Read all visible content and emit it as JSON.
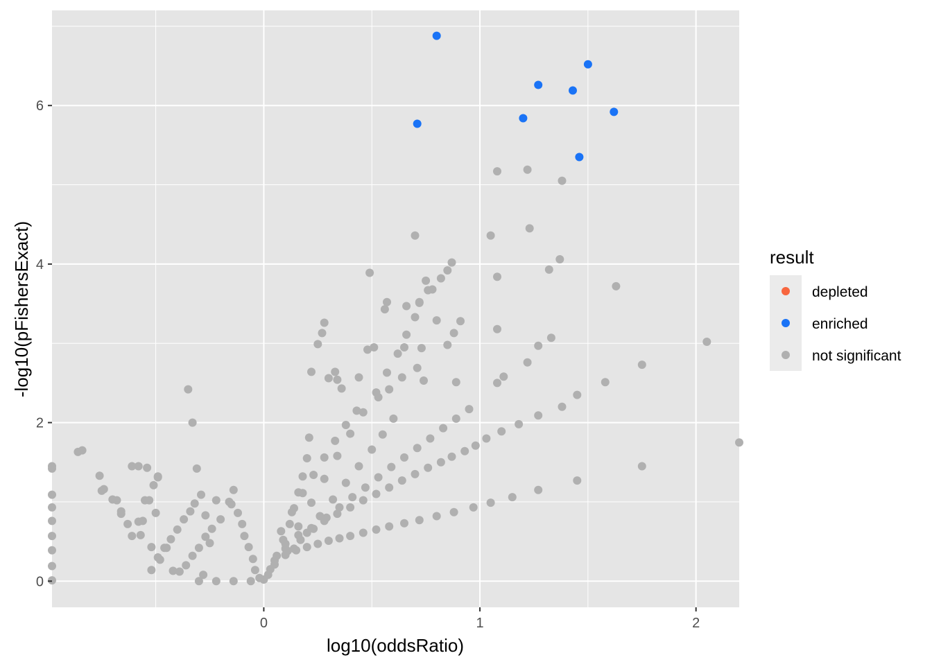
{
  "chart_data": {
    "type": "scatter",
    "title": "",
    "xlabel": "log10(oddsRatio)",
    "ylabel": "-log10(pFishersExact)",
    "xlim": [
      -0.98,
      2.2
    ],
    "ylim": [
      -0.33,
      7.2
    ],
    "x_ticks": [
      0,
      1,
      2
    ],
    "y_ticks": [
      0,
      2,
      4,
      6
    ],
    "grid": true,
    "legend": {
      "title": "result",
      "position": "right",
      "entries": [
        {
          "label": "depleted",
          "color": "#F8663F"
        },
        {
          "label": "enriched",
          "color": "#1A73F6"
        },
        {
          "label": "not significant",
          "color": "#B0B0B0"
        }
      ]
    },
    "colors": {
      "panel_background": "#E5E5E5",
      "grid": "#FFFFFF",
      "depleted": "#F8663F",
      "enriched": "#1A73F6",
      "not_significant": "#B0B0B0"
    },
    "series": [
      {
        "name": "enriched",
        "points": [
          [
            0.8,
            6.88
          ],
          [
            1.5,
            6.52
          ],
          [
            1.27,
            6.26
          ],
          [
            1.43,
            6.19
          ],
          [
            1.62,
            5.92
          ],
          [
            1.2,
            5.84
          ],
          [
            0.71,
            5.77
          ],
          [
            1.46,
            5.35
          ]
        ]
      },
      {
        "name": "depleted",
        "points": []
      },
      {
        "name": "not significant",
        "points": [
          [
            1.08,
            5.17
          ],
          [
            1.22,
            5.19
          ],
          [
            1.38,
            5.05
          ],
          [
            1.23,
            4.45
          ],
          [
            0.7,
            4.36
          ],
          [
            1.05,
            4.36
          ],
          [
            1.37,
            4.06
          ],
          [
            1.32,
            3.93
          ],
          [
            1.08,
            3.84
          ],
          [
            1.63,
            3.72
          ],
          [
            0.49,
            3.89
          ],
          [
            0.57,
            3.52
          ],
          [
            0.56,
            3.43
          ],
          [
            0.66,
            3.47
          ],
          [
            0.76,
            3.67
          ],
          [
            0.8,
            3.29
          ],
          [
            0.75,
            3.79
          ],
          [
            0.72,
            3.51
          ],
          [
            0.91,
            3.28
          ],
          [
            0.85,
            2.98
          ],
          [
            0.88,
            3.13
          ],
          [
            0.73,
            2.94
          ],
          [
            0.65,
            2.95
          ],
          [
            0.71,
            2.69
          ],
          [
            0.74,
            2.53
          ],
          [
            0.89,
            2.51
          ],
          [
            0.64,
            2.57
          ],
          [
            0.48,
            2.92
          ],
          [
            0.51,
            2.95
          ],
          [
            0.28,
            3.26
          ],
          [
            0.27,
            3.13
          ],
          [
            0.25,
            2.99
          ],
          [
            0.22,
            2.64
          ],
          [
            0.3,
            2.56
          ],
          [
            0.33,
            2.64
          ],
          [
            0.34,
            2.54
          ],
          [
            0.44,
            2.57
          ],
          [
            0.36,
            2.43
          ],
          [
            0.53,
            2.32
          ],
          [
            0.58,
            2.42
          ],
          [
            1.08,
            3.18
          ],
          [
            1.27,
            2.97
          ],
          [
            1.33,
            3.07
          ],
          [
            1.11,
            2.58
          ],
          [
            1.08,
            2.5
          ],
          [
            1.22,
            2.76
          ],
          [
            1.45,
            2.35
          ],
          [
            1.58,
            2.51
          ],
          [
            1.75,
            2.73
          ],
          [
            2.05,
            3.02
          ],
          [
            2.2,
            1.75
          ],
          [
            1.75,
            1.45
          ],
          [
            1.45,
            1.27
          ],
          [
            1.27,
            1.15
          ],
          [
            1.15,
            1.06
          ],
          [
            1.05,
            0.99
          ],
          [
            0.97,
            0.93
          ],
          [
            0.88,
            0.87
          ],
          [
            0.8,
            0.82
          ],
          [
            0.72,
            0.77
          ],
          [
            0.65,
            0.73
          ],
          [
            0.58,
            0.69
          ],
          [
            0.52,
            0.65
          ],
          [
            0.46,
            0.61
          ],
          [
            0.4,
            0.57
          ],
          [
            0.35,
            0.54
          ],
          [
            0.3,
            0.51
          ],
          [
            0.25,
            0.47
          ],
          [
            0.2,
            0.43
          ],
          [
            0.15,
            0.39
          ],
          [
            0.1,
            0.33
          ],
          [
            0.05,
            0.26
          ],
          [
            1.38,
            2.2
          ],
          [
            1.27,
            2.09
          ],
          [
            1.18,
            1.98
          ],
          [
            1.1,
            1.89
          ],
          [
            1.03,
            1.8
          ],
          [
            0.98,
            1.71
          ],
          [
            0.93,
            1.64
          ],
          [
            0.87,
            1.57
          ],
          [
            0.82,
            1.5
          ],
          [
            0.76,
            1.43
          ],
          [
            0.7,
            1.35
          ],
          [
            0.64,
            1.27
          ],
          [
            0.58,
            1.18
          ],
          [
            0.52,
            1.1
          ],
          [
            0.46,
            1.02
          ],
          [
            0.4,
            0.93
          ],
          [
            0.34,
            0.85
          ],
          [
            0.28,
            0.76
          ],
          [
            0.22,
            0.67
          ],
          [
            0.16,
            0.58
          ],
          [
            0.1,
            0.47
          ],
          [
            0.95,
            2.17
          ],
          [
            0.89,
            2.05
          ],
          [
            0.83,
            1.93
          ],
          [
            0.77,
            1.8
          ],
          [
            0.71,
            1.68
          ],
          [
            0.65,
            1.56
          ],
          [
            0.59,
            1.44
          ],
          [
            0.53,
            1.31
          ],
          [
            0.47,
            1.18
          ],
          [
            0.41,
            1.06
          ],
          [
            0.35,
            0.93
          ],
          [
            0.29,
            0.8
          ],
          [
            0.23,
            0.66
          ],
          [
            0.17,
            0.52
          ],
          [
            0.11,
            0.38
          ],
          [
            0.87,
            4.02
          ],
          [
            0.85,
            3.92
          ],
          [
            0.82,
            3.82
          ],
          [
            0.78,
            3.68
          ],
          [
            0.72,
            3.52
          ],
          [
            0.7,
            3.33
          ],
          [
            0.66,
            3.11
          ],
          [
            0.62,
            2.87
          ],
          [
            0.57,
            2.63
          ],
          [
            0.52,
            2.38
          ],
          [
            0.46,
            2.13
          ],
          [
            0.4,
            1.86
          ],
          [
            0.34,
            1.58
          ],
          [
            0.28,
            1.29
          ],
          [
            0.22,
            0.99
          ],
          [
            0.16,
            0.69
          ],
          [
            0.1,
            0.41
          ],
          [
            0.05,
            0.21
          ],
          [
            0.6,
            2.05
          ],
          [
            0.55,
            1.85
          ],
          [
            0.5,
            1.66
          ],
          [
            0.44,
            1.45
          ],
          [
            0.38,
            1.24
          ],
          [
            0.32,
            1.03
          ],
          [
            0.26,
            0.82
          ],
          [
            0.2,
            0.61
          ],
          [
            0.14,
            0.41
          ],
          [
            0.43,
            2.15
          ],
          [
            0.38,
            1.97
          ],
          [
            0.33,
            1.77
          ],
          [
            0.28,
            1.56
          ],
          [
            0.23,
            1.34
          ],
          [
            0.18,
            1.11
          ],
          [
            0.13,
            0.87
          ],
          [
            0.08,
            0.63
          ],
          [
            0.21,
            1.81
          ],
          [
            0.2,
            1.55
          ],
          [
            0.18,
            1.32
          ],
          [
            0.16,
            1.12
          ],
          [
            0.14,
            0.92
          ],
          [
            0.12,
            0.72
          ],
          [
            0.09,
            0.52
          ],
          [
            0.06,
            0.32
          ],
          [
            0.03,
            0.15
          ],
          [
            0.0,
            0.02
          ],
          [
            0.02,
            0.08
          ],
          [
            -0.35,
            2.42
          ],
          [
            -0.33,
            2.0
          ],
          [
            -0.31,
            1.42
          ],
          [
            -0.29,
            1.09
          ],
          [
            -0.32,
            0.98
          ],
          [
            -0.34,
            0.88
          ],
          [
            -0.37,
            0.78
          ],
          [
            -0.4,
            0.65
          ],
          [
            -0.43,
            0.53
          ],
          [
            -0.46,
            0.42
          ],
          [
            -0.49,
            0.3
          ],
          [
            -0.52,
            0.14
          ],
          [
            -0.49,
            1.32
          ],
          [
            -0.51,
            1.21
          ],
          [
            -0.5,
            0.86
          ],
          [
            -0.53,
            1.02
          ],
          [
            -0.54,
            1.43
          ],
          [
            -0.58,
            1.45
          ],
          [
            -0.61,
            0.57
          ],
          [
            -0.56,
            0.76
          ],
          [
            -0.63,
            0.72
          ],
          [
            -0.66,
            0.88
          ],
          [
            -0.7,
            1.03
          ],
          [
            -0.75,
            1.14
          ],
          [
            -0.76,
            1.33
          ],
          [
            -0.84,
            1.65
          ],
          [
            -0.86,
            1.63
          ],
          [
            -0.98,
            1.45
          ],
          [
            -0.98,
            1.42
          ],
          [
            -0.98,
            1.09
          ],
          [
            -0.98,
            0.93
          ],
          [
            -0.98,
            0.76
          ],
          [
            -0.98,
            0.57
          ],
          [
            -0.98,
            0.39
          ],
          [
            -0.98,
            0.19
          ],
          [
            -0.98,
            0.01
          ],
          [
            -0.22,
            1.02
          ],
          [
            -0.15,
            0.97
          ],
          [
            -0.14,
            1.15
          ],
          [
            -0.16,
            1.0
          ],
          [
            -0.12,
            0.86
          ],
          [
            -0.1,
            0.72
          ],
          [
            -0.09,
            0.57
          ],
          [
            -0.07,
            0.43
          ],
          [
            -0.05,
            0.28
          ],
          [
            -0.04,
            0.14
          ],
          [
            -0.02,
            0.04
          ],
          [
            -0.2,
            0.78
          ],
          [
            -0.24,
            0.66
          ],
          [
            -0.27,
            0.56
          ],
          [
            -0.3,
            0.42
          ],
          [
            -0.33,
            0.32
          ],
          [
            -0.36,
            0.2
          ],
          [
            -0.39,
            0.12
          ],
          [
            -0.27,
            0.83
          ],
          [
            -0.25,
            0.48
          ],
          [
            -0.28,
            0.08
          ],
          [
            -0.3,
            0.0
          ],
          [
            -0.22,
            0.0
          ],
          [
            -0.14,
            0.0
          ],
          [
            -0.06,
            0.0
          ],
          [
            -0.45,
            0.42
          ],
          [
            -0.48,
            0.27
          ],
          [
            -0.42,
            0.13
          ],
          [
            -0.57,
            0.58
          ],
          [
            -0.61,
            1.45
          ],
          [
            -0.66,
            0.85
          ],
          [
            -0.55,
            1.02
          ],
          [
            -0.49,
            1.31
          ],
          [
            -0.52,
            0.43
          ],
          [
            -0.58,
            0.75
          ],
          [
            -0.68,
            1.02
          ],
          [
            -0.74,
            1.16
          ]
        ]
      }
    ]
  }
}
